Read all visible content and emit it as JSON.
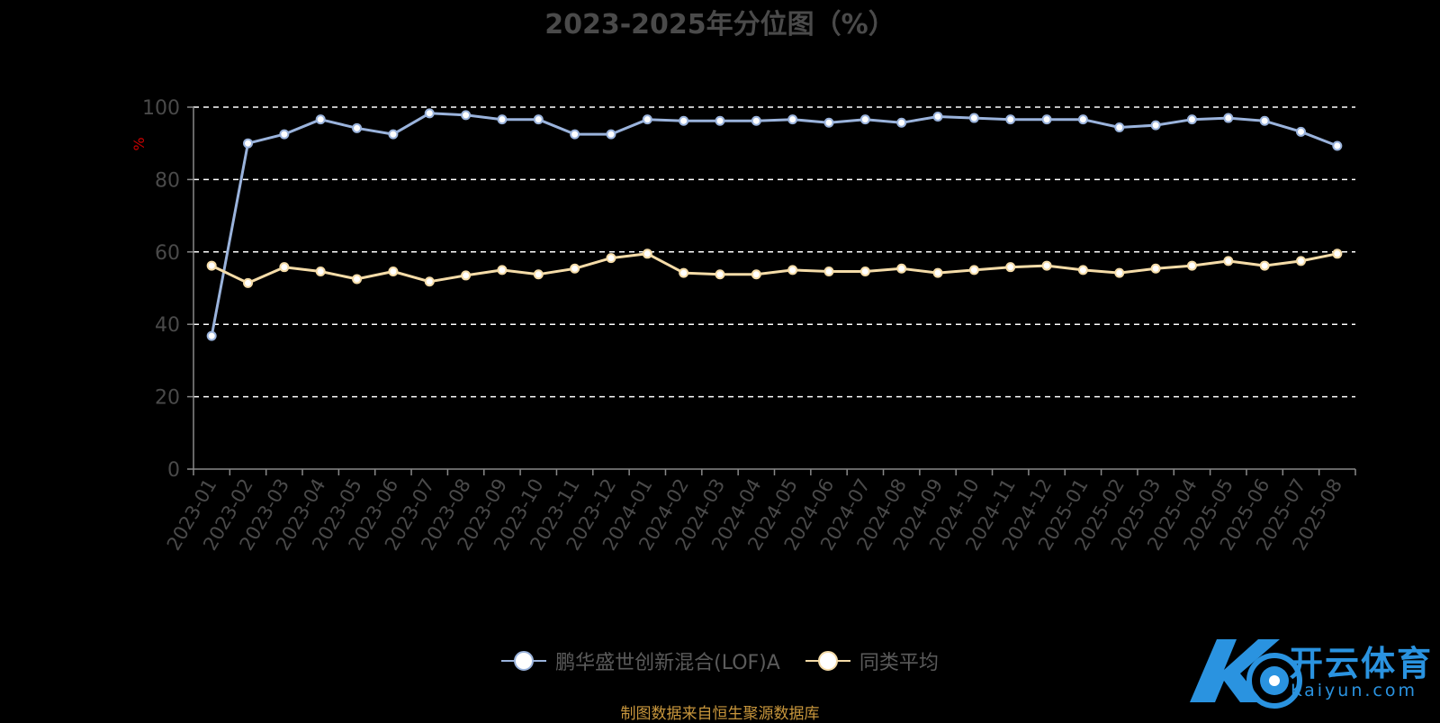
{
  "title": "2023-2025年分位图（%）",
  "source_note": "制图数据来自恒生聚源数据库",
  "watermark": {
    "main": "开云体育",
    "sub": "Kaiyun.com"
  },
  "colors": {
    "background": "#000000",
    "series1": "#9ab3dc",
    "series2": "#f5dca8",
    "grid": "#ffffff",
    "axis": "#888888",
    "tick_label": "#4a4a4a",
    "ylabel": "#cc0000",
    "source": "#c8963c",
    "logo": "#2a93e0"
  },
  "chart_data": {
    "type": "line",
    "title": "2023-2025年分位图（%）",
    "xlabel": "",
    "ylabel": "%",
    "ylim": [
      0,
      100
    ],
    "yticks": [
      0,
      20,
      40,
      60,
      80,
      100
    ],
    "grid": true,
    "legend_position": "bottom",
    "categories": [
      "2023-01",
      "2023-02",
      "2023-03",
      "2023-04",
      "2023-05",
      "2023-06",
      "2023-07",
      "2023-08",
      "2023-09",
      "2023-10",
      "2023-11",
      "2023-12",
      "2024-01",
      "2024-02",
      "2024-03",
      "2024-04",
      "2024-05",
      "2024-06",
      "2024-07",
      "2024-08",
      "2024-09",
      "2024-10",
      "2024-11",
      "2024-12",
      "2025-01",
      "2025-02",
      "2025-03",
      "2025-04",
      "2025-05",
      "2025-06",
      "2025-07",
      "2025-08"
    ],
    "series": [
      {
        "name": "鹏华盛世创新混合(LOF)A",
        "values": [
          36.8,
          90.0,
          92.5,
          96.6,
          94.2,
          92.5,
          98.3,
          97.8,
          96.6,
          96.6,
          92.5,
          92.5,
          96.6,
          96.2,
          96.2,
          96.2,
          96.6,
          95.7,
          96.6,
          95.7,
          97.4,
          97.0,
          96.6,
          96.6,
          96.6,
          94.4,
          95.0,
          96.6,
          97.0,
          96.2,
          93.2,
          89.3
        ]
      },
      {
        "name": "同类平均",
        "values": [
          56.2,
          51.4,
          55.8,
          54.6,
          52.5,
          54.6,
          51.8,
          53.5,
          55.0,
          53.8,
          55.4,
          58.3,
          59.5,
          54.2,
          53.8,
          53.8,
          55.0,
          54.6,
          54.6,
          55.4,
          54.2,
          55.0,
          55.8,
          56.2,
          55.0,
          54.2,
          55.4,
          56.2,
          57.5,
          56.2,
          57.5,
          59.5
        ]
      }
    ]
  }
}
